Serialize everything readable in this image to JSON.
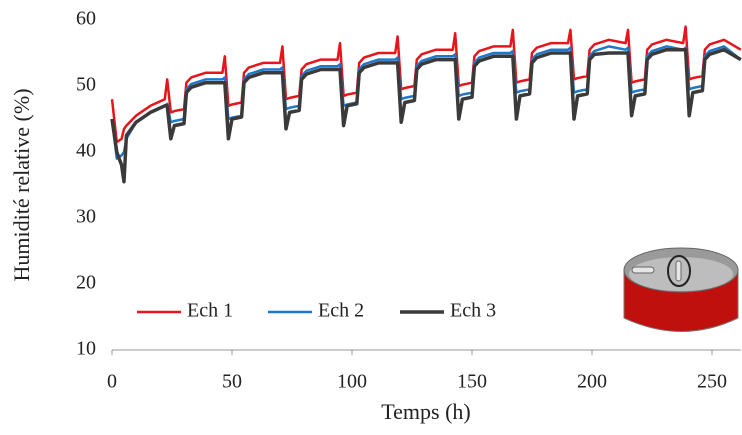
{
  "chart_data": {
    "type": "line",
    "xlabel": "Temps (h)",
    "ylabel": "Humidité relative (%)",
    "xlim": [
      0,
      262
    ],
    "ylim": [
      10,
      60
    ],
    "xticks": [
      0,
      50,
      100,
      150,
      200,
      250
    ],
    "yticks": [
      10,
      20,
      30,
      40,
      50,
      60
    ],
    "grid": false,
    "legend": "bottom-left",
    "x": [
      0,
      2,
      4,
      5,
      6,
      10,
      16,
      22,
      23,
      24.5,
      26,
      30,
      31,
      33,
      39,
      46,
      47,
      48.5,
      50,
      54,
      55,
      57,
      63,
      70,
      71,
      72.5,
      74,
      78,
      79,
      81,
      87,
      94,
      95,
      96.5,
      98,
      102,
      103,
      105,
      111,
      118,
      119,
      120.5,
      122,
      126,
      127,
      129,
      135,
      142,
      143,
      144.5,
      146,
      150,
      151,
      153,
      159,
      166,
      167,
      168.5,
      170,
      174,
      175,
      177,
      183,
      190,
      191,
      192.5,
      194,
      198,
      199,
      201,
      207,
      214,
      215,
      216.5,
      218,
      222,
      223,
      225,
      231,
      238,
      239,
      240.5,
      242,
      246,
      247,
      249,
      255,
      262
    ],
    "series": [
      {
        "name": "Ech 1",
        "color": "#e8141c",
        "values": [
          48,
          41.5,
          42,
          43.5,
          44,
          45.5,
          47,
          48,
          51,
          46,
          46.2,
          46.5,
          50.5,
          51.3,
          52,
          52,
          54.5,
          47,
          47.2,
          47.5,
          52,
          52.8,
          53.5,
          53.5,
          56,
          48,
          48.2,
          48.5,
          52.5,
          53.3,
          54,
          54,
          56.5,
          48.5,
          48.7,
          49,
          53.5,
          54.3,
          55,
          55,
          57.5,
          49.5,
          49.7,
          50,
          54,
          54.8,
          55.5,
          55.5,
          58,
          50,
          50.2,
          50.5,
          54.5,
          55.3,
          56,
          56,
          58.5,
          50.5,
          50.7,
          51,
          55,
          55.8,
          56.5,
          56.5,
          58.5,
          51,
          51.2,
          51.5,
          55.5,
          56.3,
          57,
          56.5,
          58.5,
          50.5,
          50.7,
          51,
          55.5,
          56.3,
          57,
          56.5,
          59,
          51,
          51.2,
          51.5,
          55.5,
          56.3,
          57,
          55.5
        ]
      },
      {
        "name": "Ech 2",
        "color": "#1f77c9",
        "values": [
          45,
          39,
          39.5,
          40,
          42,
          44.5,
          46,
          47,
          47.3,
          44.5,
          44.7,
          45,
          49.5,
          50.3,
          51,
          51,
          51.3,
          45,
          45.2,
          45.5,
          51,
          51.8,
          52.5,
          52.5,
          52.8,
          46.5,
          46.7,
          47,
          51.5,
          52.3,
          53,
          53,
          53.3,
          47,
          47.2,
          47.5,
          52.5,
          53.3,
          54,
          54,
          54.3,
          48,
          48.2,
          48.5,
          53,
          53.8,
          54.5,
          54.5,
          54.8,
          48.5,
          48.7,
          49,
          53.5,
          54.3,
          55,
          55,
          55.3,
          49,
          49.2,
          49.5,
          54,
          54.8,
          55.5,
          55.5,
          55.8,
          49,
          49.2,
          49.5,
          54.5,
          55.3,
          56,
          55.5,
          55.8,
          49,
          49.2,
          49.5,
          54.5,
          55.3,
          56,
          55.5,
          55.8,
          49.5,
          49.7,
          50,
          54.5,
          55.3,
          56,
          54
        ]
      },
      {
        "name": "Ech 3",
        "color": "#3a3a3a",
        "values": [
          45,
          40,
          38,
          35.5,
          42.5,
          44.5,
          46,
          47,
          47,
          42,
          44,
          44.3,
          49,
          49.8,
          50.5,
          50.5,
          50.5,
          42,
          45,
          45.3,
          50.5,
          51.3,
          52,
          52,
          52,
          43.5,
          46,
          46.3,
          51,
          51.8,
          52.5,
          52.5,
          52.5,
          44,
          47,
          47.3,
          52,
          52.8,
          53.5,
          53.5,
          53.5,
          44.5,
          47.5,
          47.8,
          52.5,
          53.3,
          54,
          54,
          54,
          45,
          48,
          48.3,
          53,
          53.8,
          54.5,
          54.5,
          54.5,
          45,
          48.5,
          48.8,
          53.5,
          54.3,
          55,
          55,
          55,
          45,
          48.5,
          48.8,
          54,
          54.8,
          55,
          55,
          55,
          45.5,
          48.5,
          48.8,
          54,
          54.8,
          55.5,
          55.5,
          55.5,
          45.5,
          49,
          49.3,
          54,
          54.8,
          55.5,
          54
        ]
      }
    ]
  }
}
